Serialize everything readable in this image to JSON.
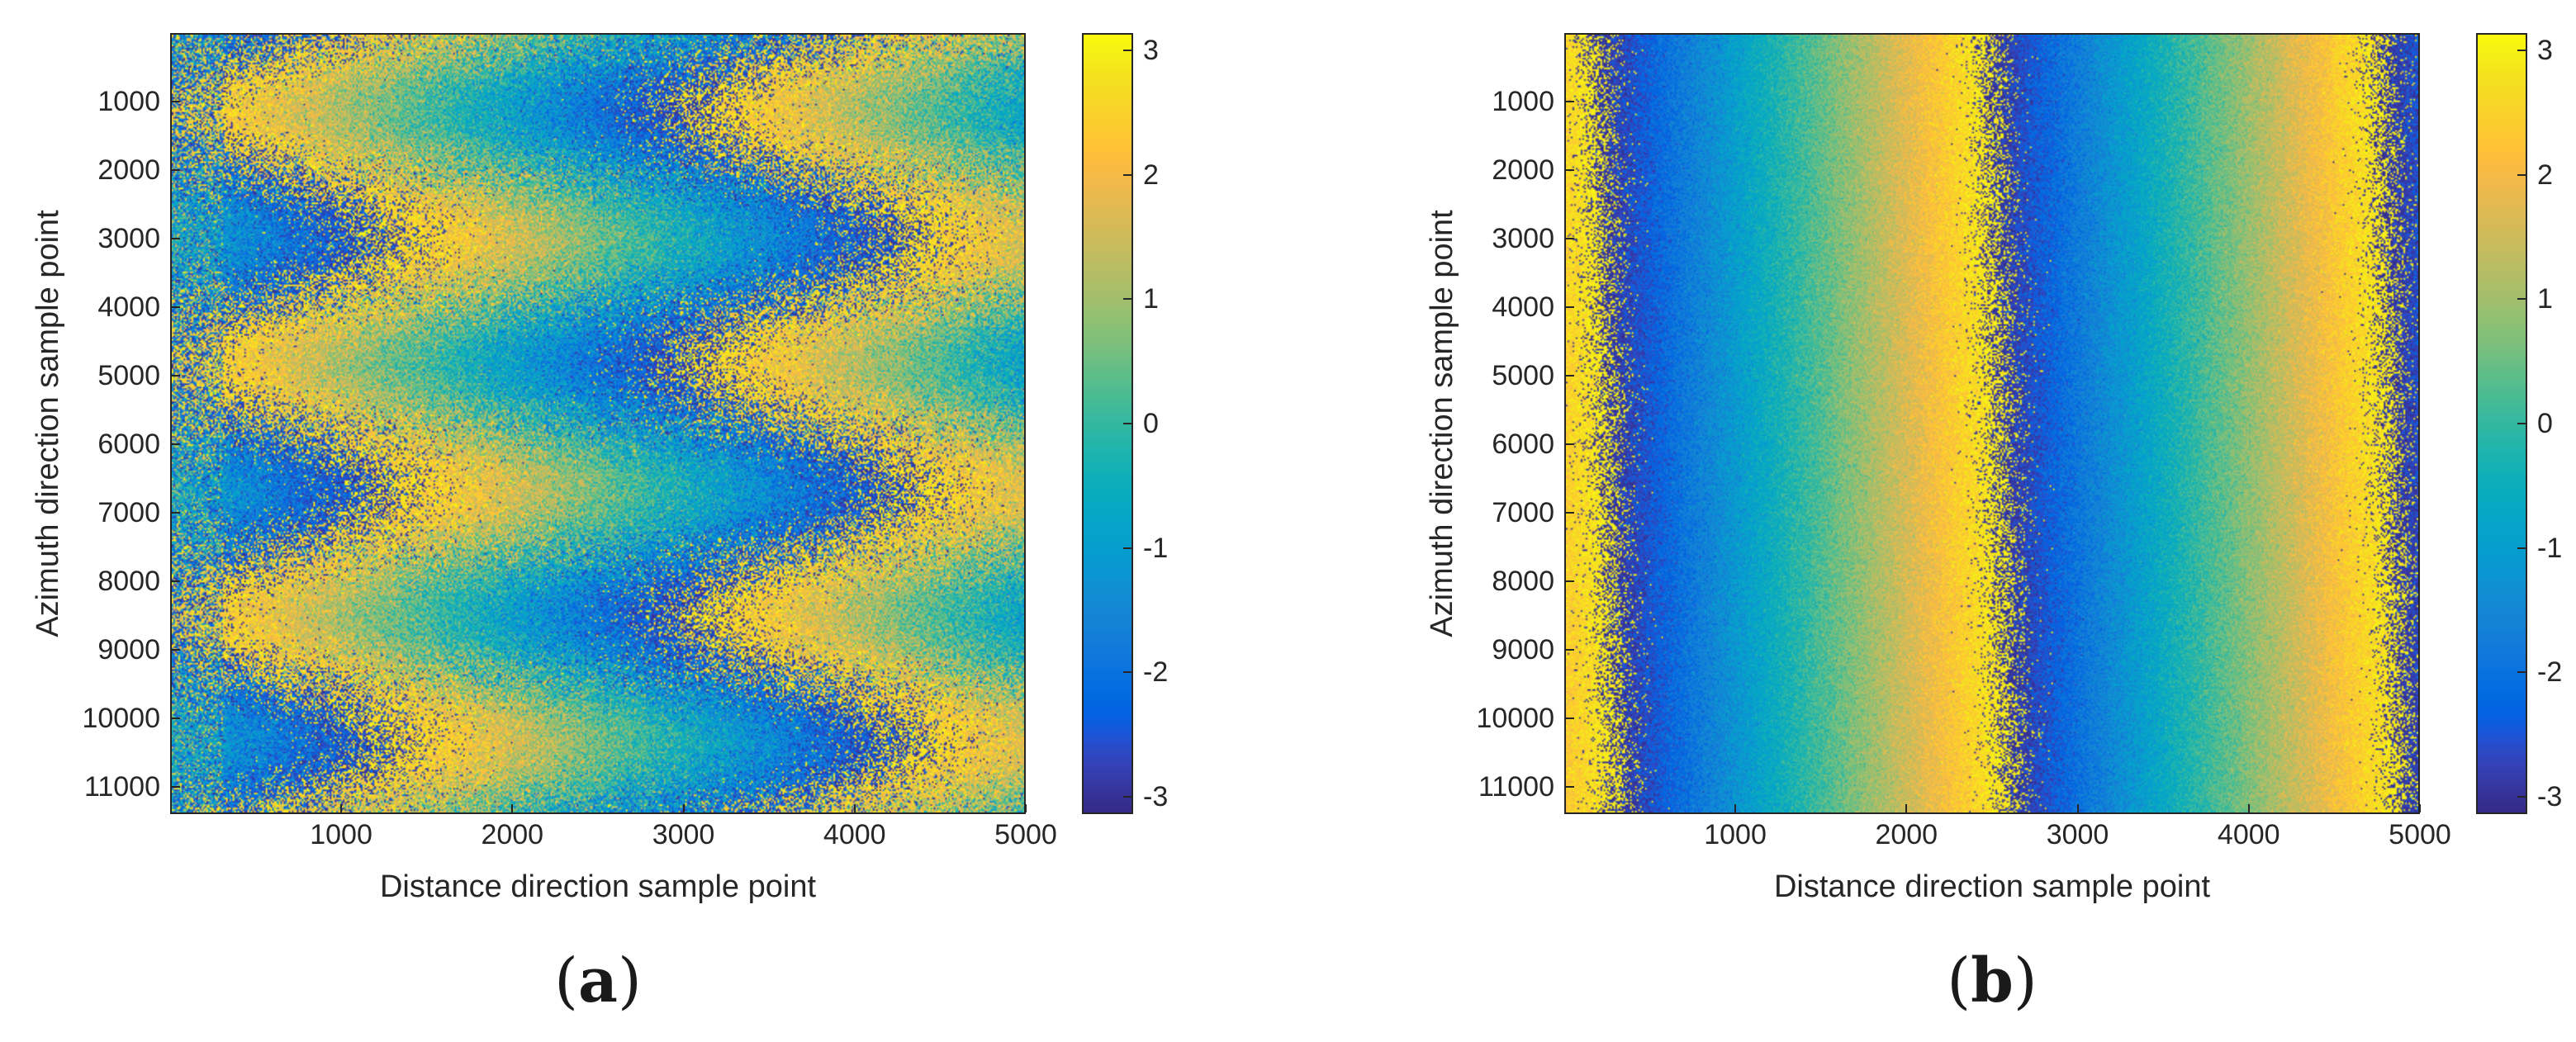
{
  "chart_data": [
    {
      "type": "heatmap",
      "panel_label": "(a)",
      "panel_letter": "a",
      "xlabel": "Distance direction sample point",
      "ylabel": "Azimuth direction sample point",
      "xlim": [
        1,
        5000
      ],
      "ylim": [
        1,
        11400
      ],
      "y_reversed": true,
      "xticks": [
        1000,
        2000,
        3000,
        4000,
        5000
      ],
      "yticks": [
        1000,
        2000,
        3000,
        4000,
        5000,
        6000,
        7000,
        8000,
        9000,
        10000,
        11000
      ],
      "colorbar": {
        "colormap": "parula",
        "clim": [
          -3.14159,
          3.14159
        ],
        "ticks": [
          -3,
          -2,
          -1,
          0,
          1,
          2,
          3
        ]
      },
      "pattern": "wrapped interferometric phase with zigzag fringes (period ~3700 azimuth samples), high noise"
    },
    {
      "type": "heatmap",
      "panel_label": "(b)",
      "panel_letter": "b",
      "xlabel": "Distance direction sample point",
      "ylabel": "Azimuth direction sample point",
      "xlim": [
        1,
        5000
      ],
      "ylim": [
        1,
        11400
      ],
      "y_reversed": true,
      "xticks": [
        1000,
        2000,
        3000,
        4000,
        5000
      ],
      "yticks": [
        1000,
        2000,
        3000,
        4000,
        5000,
        6000,
        7000,
        8000,
        9000,
        10000,
        11000
      ],
      "colorbar": {
        "colormap": "parula",
        "clim": [
          -3.14159,
          3.14159
        ],
        "ticks": [
          -3,
          -2,
          -1,
          0,
          1,
          2,
          3
        ]
      },
      "pattern": "compensated wrapped phase with a single near-vertical phase jump near distance ~2400, low noise"
    }
  ]
}
